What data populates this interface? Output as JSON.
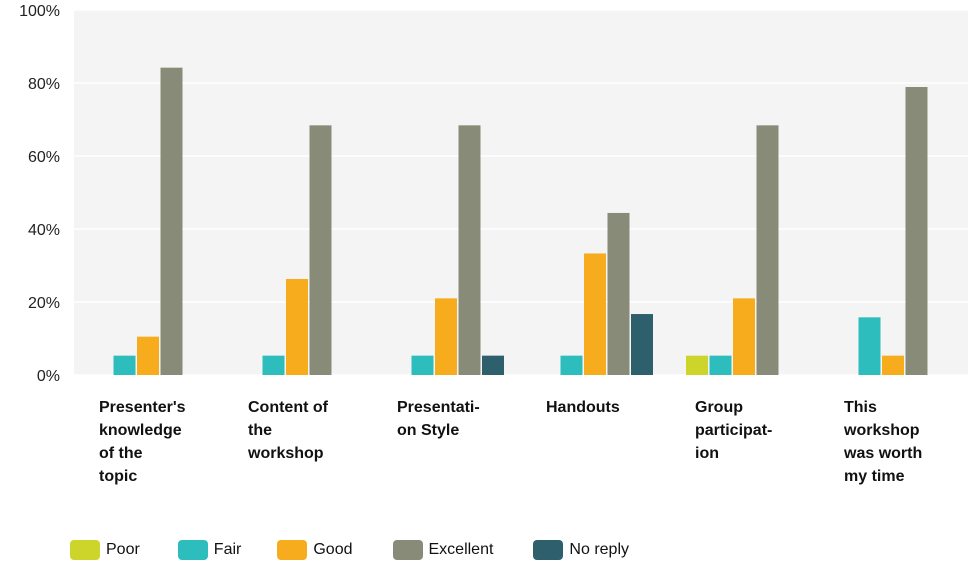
{
  "chart_data": {
    "type": "bar",
    "categories": [
      [
        "Presenter's",
        "knowledge",
        "of the",
        "topic"
      ],
      [
        "Content of",
        "the",
        "workshop"
      ],
      [
        "Presentati-",
        "on Style"
      ],
      [
        "Handouts"
      ],
      [
        "Group",
        "participat-",
        "ion"
      ],
      [
        "This",
        "workshop",
        "was worth",
        "my time"
      ]
    ],
    "series": [
      {
        "name": "Poor",
        "color": "#cdd52b",
        "values": [
          0,
          0,
          0,
          0,
          5.3,
          0
        ]
      },
      {
        "name": "Fair",
        "color": "#2ebdbd",
        "values": [
          5.3,
          5.3,
          5.3,
          5.3,
          5.3,
          15.8
        ]
      },
      {
        "name": "Good",
        "color": "#f7ac1e",
        "values": [
          10.5,
          26.3,
          21,
          33.3,
          21,
          5.3
        ]
      },
      {
        "name": "Excellent",
        "color": "#898b79",
        "values": [
          84.2,
          68.4,
          68.4,
          44.4,
          68.4,
          78.9
        ]
      },
      {
        "name": "No reply",
        "color": "#2e5f6c",
        "values": [
          0,
          0,
          5.3,
          16.7,
          0,
          0
        ]
      }
    ],
    "ylim": [
      0,
      100
    ],
    "yticks": [
      "0%",
      "20%",
      "40%",
      "60%",
      "80%",
      "100%"
    ],
    "grid": true,
    "legend_position": "bottom-left",
    "background": "#f4f4f4"
  }
}
